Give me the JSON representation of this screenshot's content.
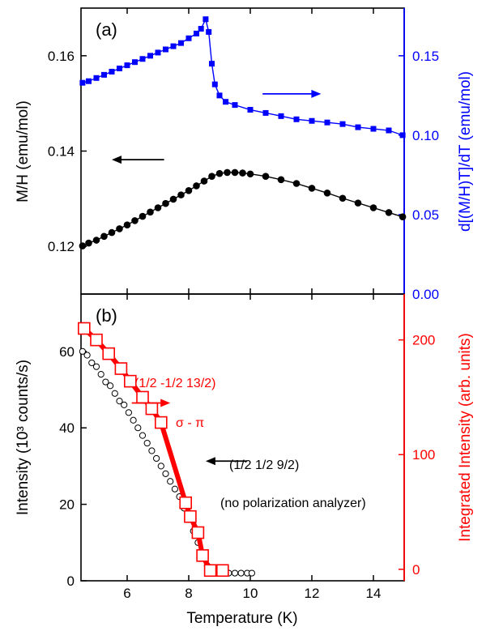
{
  "chart_data": [
    {
      "panel": "(a)",
      "type": "line",
      "x_range": [
        4.5,
        15
      ],
      "ylabel_left": "M/H (emu/mol)",
      "ylim_left": [
        0.11,
        0.17
      ],
      "yticks_left": [
        0.12,
        0.14,
        0.16
      ],
      "ytick_labels_left": [
        "0.12",
        "0.14",
        "0.16"
      ],
      "ylabel_right": "d[(M/H)T]/dT (emu/mol)",
      "ylim_right": [
        0,
        0.18
      ],
      "yticks_right": [
        0,
        0.05,
        0.1,
        0.15
      ],
      "ytick_labels_right": [
        "0.00",
        "0.05",
        "0.10",
        "0.15"
      ],
      "series": [
        {
          "axis": "left",
          "color": "#000000",
          "marker": "circle",
          "x": [
            4.55,
            4.75,
            5,
            5.25,
            5.5,
            5.75,
            6,
            6.25,
            6.5,
            6.75,
            7,
            7.25,
            7.5,
            7.75,
            8,
            8.25,
            8.5,
            8.75,
            9,
            9.25,
            9.5,
            9.75,
            10,
            10.5,
            11,
            11.5,
            12,
            12.5,
            13,
            13.5,
            14,
            14.5,
            14.95
          ],
          "y": [
            0.1201,
            0.1207,
            0.1213,
            0.1221,
            0.1229,
            0.1237,
            0.1245,
            0.1254,
            0.1263,
            0.1272,
            0.1281,
            0.129,
            0.1299,
            0.1308,
            0.1317,
            0.1327,
            0.1337,
            0.1347,
            0.1353,
            0.1355,
            0.1355,
            0.1354,
            0.1352,
            0.1347,
            0.134,
            0.1332,
            0.1322,
            0.1312,
            0.1301,
            0.1291,
            0.1281,
            0.1271,
            0.1262
          ]
        },
        {
          "axis": "right",
          "color": "#0000ff",
          "marker": "square",
          "x": [
            4.55,
            4.75,
            5,
            5.25,
            5.5,
            5.75,
            6,
            6.25,
            6.5,
            6.75,
            7,
            7.25,
            7.5,
            7.75,
            8,
            8.25,
            8.4,
            8.55,
            8.65,
            8.75,
            8.85,
            9,
            9.2,
            9.5,
            10,
            10.5,
            11,
            11.5,
            12,
            12.5,
            13,
            13.5,
            14,
            14.5,
            14.95
          ],
          "y": [
            0.133,
            0.134,
            0.136,
            0.138,
            0.14,
            0.142,
            0.144,
            0.146,
            0.148,
            0.15,
            0.152,
            0.154,
            0.156,
            0.158,
            0.161,
            0.164,
            0.167,
            0.173,
            0.165,
            0.145,
            0.132,
            0.125,
            0.121,
            0.119,
            0.116,
            0.114,
            0.112,
            0.11,
            0.109,
            0.108,
            0.107,
            0.105,
            0.104,
            0.103,
            0.1
          ]
        }
      ],
      "arrows": [
        {
          "color": "#000000",
          "direction": "left",
          "x_from": 7.2,
          "x_to": 5.5,
          "axis": "left",
          "y": 0.1382
        },
        {
          "color": "#0000ff",
          "direction": "right",
          "x_from": 10.4,
          "x_to": 12.3,
          "axis": "right",
          "y": 0.126
        }
      ]
    },
    {
      "panel": "(b)",
      "type": "scatter",
      "xlabel": "Temperature (K)",
      "xlim": [
        4.5,
        15
      ],
      "xticks": [
        6,
        8,
        10,
        12,
        14
      ],
      "xtick_labels": [
        "6",
        "8",
        "10",
        "12",
        "14"
      ],
      "ylabel_left": "Intensity (10³ counts/s)",
      "ylim_left": [
        0,
        75
      ],
      "yticks_left": [
        0,
        20,
        40,
        60
      ],
      "ytick_labels_left": [
        "0",
        "20",
        "40",
        "60"
      ],
      "ylabel_right": "Integrated Intensity (arb. units)",
      "ylim_right": [
        -10,
        240
      ],
      "yticks_right": [
        0,
        100,
        200
      ],
      "ytick_labels_right": [
        "0",
        "100",
        "200"
      ],
      "annotations": {
        "red_reflection": "(1/2 -1/2 13/2)",
        "red_polarization": "σ - π",
        "black_reflection": "(1/2 1/2 9/2)",
        "black_note": "(no polarization analyzer)"
      },
      "series": [
        {
          "axis": "left",
          "color": "#000000",
          "marker": "open-circle",
          "x": [
            4.55,
            4.7,
            4.85,
            5,
            5.15,
            5.3,
            5.45,
            5.6,
            5.75,
            5.9,
            6.05,
            6.2,
            6.35,
            6.5,
            6.65,
            6.8,
            6.95,
            7.1,
            7.25,
            7.4,
            7.55,
            7.7,
            7.85,
            8,
            8.15,
            8.3,
            8.45,
            8.6,
            8.75,
            8.9,
            9.1,
            9.3,
            9.5,
            9.7,
            9.9,
            10.05
          ],
          "y": [
            60,
            59,
            57,
            56,
            54,
            52,
            51,
            49,
            47,
            46,
            44,
            42,
            40,
            38,
            36,
            34,
            32,
            30,
            28,
            26,
            24,
            22,
            19,
            16,
            13,
            10,
            7,
            4,
            2,
            2,
            2,
            2,
            2,
            2,
            2,
            2
          ]
        },
        {
          "axis": "right",
          "color": "#ff0000",
          "marker": "open-square",
          "x": [
            4.6,
            5,
            5.4,
            5.8,
            6.1,
            6.5,
            6.8,
            7.1,
            7.9,
            8.05,
            8.3,
            8.45,
            8.7,
            9.1
          ],
          "y": [
            210,
            200,
            188,
            175,
            164,
            150,
            140,
            128,
            58,
            46,
            32,
            12,
            -1,
            -1
          ]
        }
      ],
      "arrows": [
        {
          "color": "#ff0000",
          "direction": "right",
          "x_from": 6.15,
          "x_to": 7.4,
          "axis": "left",
          "y": 46.5
        },
        {
          "color": "#000000",
          "direction": "left",
          "x_from": 9.9,
          "x_to": 8.55,
          "axis": "left",
          "y": 31.3
        }
      ]
    }
  ]
}
